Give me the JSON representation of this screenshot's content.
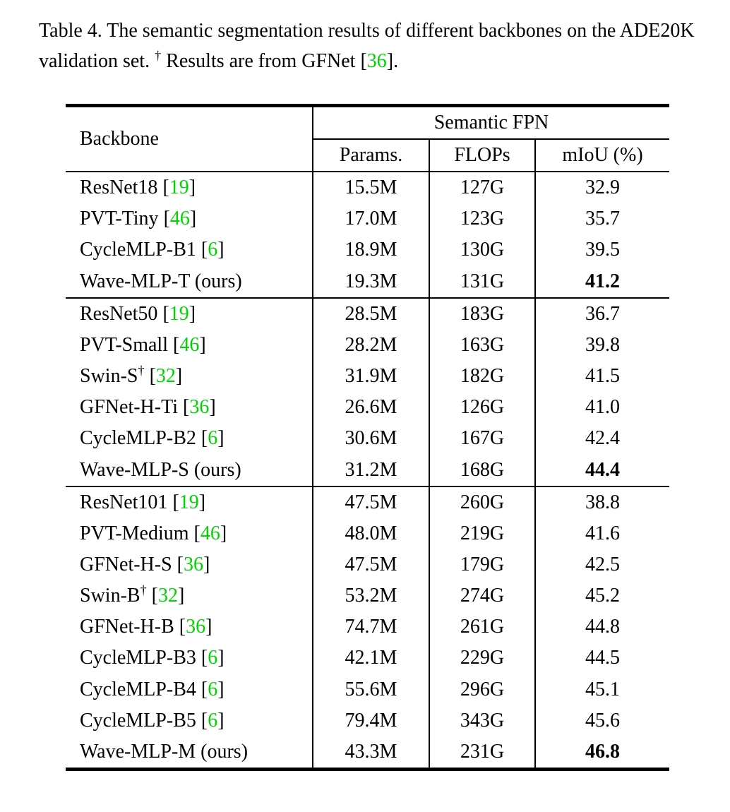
{
  "colors": {
    "citation_green": "#00d400"
  },
  "caption": {
    "s0": "Table 4. The semantic segmentation results of different backbones on the ADE20K validation set. ",
    "dagger": "†",
    "s1": " Results are from GFNet [",
    "cite": "36",
    "s2": "]."
  },
  "table": {
    "backbone_header": "Backbone",
    "group_header": "Semantic FPN",
    "sub_headers": [
      "Params.",
      "FLOPs",
      "mIoU (%)"
    ],
    "dagger_symbol": "†",
    "groups": [
      {
        "rows": [
          {
            "name": "ResNet18",
            "cite": "19",
            "dagger": false,
            "params": "15.5M",
            "flops": "127G",
            "miou": "32.9",
            "bold_miou": false
          },
          {
            "name": "PVT-Tiny",
            "cite": "46",
            "dagger": false,
            "params": "17.0M",
            "flops": "123G",
            "miou": "35.7",
            "bold_miou": false
          },
          {
            "name": "CycleMLP-B1",
            "cite": "6",
            "dagger": false,
            "params": "18.9M",
            "flops": "130G",
            "miou": "39.5",
            "bold_miou": false
          },
          {
            "name": "Wave-MLP-T (ours)",
            "cite": null,
            "dagger": false,
            "params": "19.3M",
            "flops": "131G",
            "miou": "41.2",
            "bold_miou": true
          }
        ]
      },
      {
        "rows": [
          {
            "name": "ResNet50",
            "cite": "19",
            "dagger": false,
            "params": "28.5M",
            "flops": "183G",
            "miou": "36.7",
            "bold_miou": false
          },
          {
            "name": "PVT-Small",
            "cite": "46",
            "dagger": false,
            "params": "28.2M",
            "flops": "163G",
            "miou": "39.8",
            "bold_miou": false
          },
          {
            "name": "Swin-S",
            "cite": "32",
            "dagger": true,
            "params": "31.9M",
            "flops": "182G",
            "miou": "41.5",
            "bold_miou": false
          },
          {
            "name": "GFNet-H-Ti",
            "cite": "36",
            "dagger": false,
            "params": "26.6M",
            "flops": "126G",
            "miou": "41.0",
            "bold_miou": false
          },
          {
            "name": "CycleMLP-B2",
            "cite": "6",
            "dagger": false,
            "params": "30.6M",
            "flops": "167G",
            "miou": "42.4",
            "bold_miou": false
          },
          {
            "name": "Wave-MLP-S (ours)",
            "cite": null,
            "dagger": false,
            "params": "31.2M",
            "flops": "168G",
            "miou": "44.4",
            "bold_miou": true
          }
        ]
      },
      {
        "rows": [
          {
            "name": "ResNet101",
            "cite": "19",
            "dagger": false,
            "params": "47.5M",
            "flops": "260G",
            "miou": "38.8",
            "bold_miou": false
          },
          {
            "name": "PVT-Medium",
            "cite": "46",
            "dagger": false,
            "params": "48.0M",
            "flops": "219G",
            "miou": "41.6",
            "bold_miou": false
          },
          {
            "name": "GFNet-H-S",
            "cite": "36",
            "dagger": false,
            "params": "47.5M",
            "flops": "179G",
            "miou": "42.5",
            "bold_miou": false
          },
          {
            "name": "Swin-B",
            "cite": "32",
            "dagger": true,
            "params": "53.2M",
            "flops": "274G",
            "miou": "45.2",
            "bold_miou": false
          },
          {
            "name": "GFNet-H-B",
            "cite": "36",
            "dagger": false,
            "params": "74.7M",
            "flops": "261G",
            "miou": "44.8",
            "bold_miou": false
          },
          {
            "name": "CycleMLP-B3",
            "cite": "6",
            "dagger": false,
            "params": "42.1M",
            "flops": "229G",
            "miou": "44.5",
            "bold_miou": false
          },
          {
            "name": "CycleMLP-B4",
            "cite": "6",
            "dagger": false,
            "params": "55.6M",
            "flops": "296G",
            "miou": "45.1",
            "bold_miou": false
          },
          {
            "name": "CycleMLP-B5",
            "cite": "6",
            "dagger": false,
            "params": "79.4M",
            "flops": "343G",
            "miou": "45.6",
            "bold_miou": false
          },
          {
            "name": "Wave-MLP-M (ours)",
            "cite": null,
            "dagger": false,
            "params": "43.3M",
            "flops": "231G",
            "miou": "46.8",
            "bold_miou": true
          }
        ]
      }
    ]
  }
}
